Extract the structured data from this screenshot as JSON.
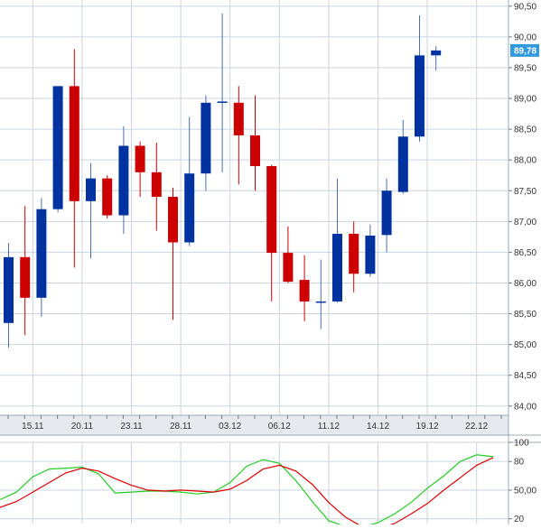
{
  "chart_data": [
    {
      "type": "candlestick",
      "ylim": [
        83.85,
        90.6
      ],
      "grid": true,
      "price_ticks": [
        "90,50",
        "90,00",
        "89,50",
        "89,00",
        "88,50",
        "88,00",
        "87,50",
        "87,00",
        "86,50",
        "86,00",
        "85,50",
        "85,00",
        "84,50",
        "84,00"
      ],
      "price_tick_values": [
        90.5,
        90.0,
        89.5,
        89.0,
        88.5,
        88.0,
        87.5,
        87.0,
        86.5,
        86.0,
        85.5,
        85.0,
        84.5,
        84.0
      ],
      "x_labels": [
        "15.11",
        "20.11",
        "23.11",
        "28.11",
        "03.12",
        "06.12",
        "11.12",
        "14.12",
        "19.12",
        "22.12"
      ],
      "x_label_slots": [
        1,
        4,
        7,
        10,
        13,
        16,
        19,
        22,
        25,
        28
      ],
      "last_price": "89,78",
      "colors": {
        "up": "#0033a0",
        "down": "#cc0000",
        "wick": "#4a6fb0",
        "grid": "#c9d4e0",
        "last_price_bg": "#3399dd"
      },
      "candles": [
        {
          "open": 85.35,
          "high": 86.65,
          "low": 84.95,
          "close": 86.42
        },
        {
          "open": 86.42,
          "high": 87.25,
          "low": 85.15,
          "close": 85.76
        },
        {
          "open": 85.76,
          "high": 87.38,
          "low": 85.45,
          "close": 87.2
        },
        {
          "open": 87.2,
          "high": 89.2,
          "low": 87.15,
          "close": 89.2
        },
        {
          "open": 89.2,
          "high": 89.8,
          "low": 86.25,
          "close": 87.33
        },
        {
          "open": 87.33,
          "high": 87.95,
          "low": 86.4,
          "close": 87.7
        },
        {
          "open": 87.7,
          "high": 87.75,
          "low": 87.05,
          "close": 87.1
        },
        {
          "open": 87.1,
          "high": 88.55,
          "low": 86.8,
          "close": 88.23
        },
        {
          "open": 88.23,
          "high": 88.3,
          "low": 87.4,
          "close": 87.8
        },
        {
          "open": 87.8,
          "high": 88.28,
          "low": 86.85,
          "close": 87.4
        },
        {
          "open": 87.4,
          "high": 87.55,
          "low": 85.4,
          "close": 86.66
        },
        {
          "open": 86.66,
          "high": 88.7,
          "low": 86.6,
          "close": 87.78
        },
        {
          "open": 87.78,
          "high": 89.05,
          "low": 87.5,
          "close": 88.93
        },
        {
          "open": 88.95,
          "high": 90.38,
          "low": 87.8,
          "close": 88.95
        },
        {
          "open": 88.93,
          "high": 89.2,
          "low": 87.6,
          "close": 88.4
        },
        {
          "open": 88.4,
          "high": 89.05,
          "low": 87.5,
          "close": 87.9
        },
        {
          "open": 87.9,
          "high": 87.92,
          "low": 85.7,
          "close": 86.49
        },
        {
          "open": 86.49,
          "high": 86.92,
          "low": 86.0,
          "close": 86.02
        },
        {
          "open": 86.05,
          "high": 86.45,
          "low": 85.38,
          "close": 85.7
        },
        {
          "open": 85.7,
          "high": 86.38,
          "low": 85.25,
          "close": 85.7
        },
        {
          "open": 85.7,
          "high": 87.7,
          "low": 85.68,
          "close": 86.8
        },
        {
          "open": 86.8,
          "high": 87.0,
          "low": 85.85,
          "close": 86.15
        },
        {
          "open": 86.15,
          "high": 86.95,
          "low": 86.1,
          "close": 86.77
        },
        {
          "open": 86.78,
          "high": 87.7,
          "low": 86.5,
          "close": 87.5
        },
        {
          "open": 87.48,
          "high": 88.65,
          "low": 87.45,
          "close": 88.38
        },
        {
          "open": 88.38,
          "high": 90.35,
          "low": 88.3,
          "close": 89.7
        },
        {
          "open": 89.7,
          "high": 89.85,
          "low": 89.45,
          "close": 89.78
        }
      ]
    },
    {
      "type": "line",
      "ylim": [
        15,
        100
      ],
      "ticks": [
        "100",
        "80",
        "50,00",
        "20"
      ],
      "tick_values": [
        100,
        80,
        50,
        20
      ],
      "grid": true,
      "series": [
        {
          "color": "#22cc22",
          "values": [
            40,
            48,
            64,
            72,
            73,
            74,
            67,
            47,
            48,
            49,
            49,
            48,
            46,
            48,
            58,
            75,
            82,
            78,
            60,
            38,
            18,
            12,
            11,
            16,
            25,
            37,
            52,
            65,
            80,
            87,
            85
          ]
        },
        {
          "color": "#dd0000",
          "values": [
            32,
            38,
            48,
            58,
            68,
            73,
            70,
            62,
            55,
            50,
            49,
            50,
            49,
            48,
            51,
            60,
            72,
            76,
            70,
            56,
            37,
            22,
            12,
            10,
            15,
            25,
            36,
            50,
            63,
            76,
            84
          ]
        }
      ]
    }
  ]
}
